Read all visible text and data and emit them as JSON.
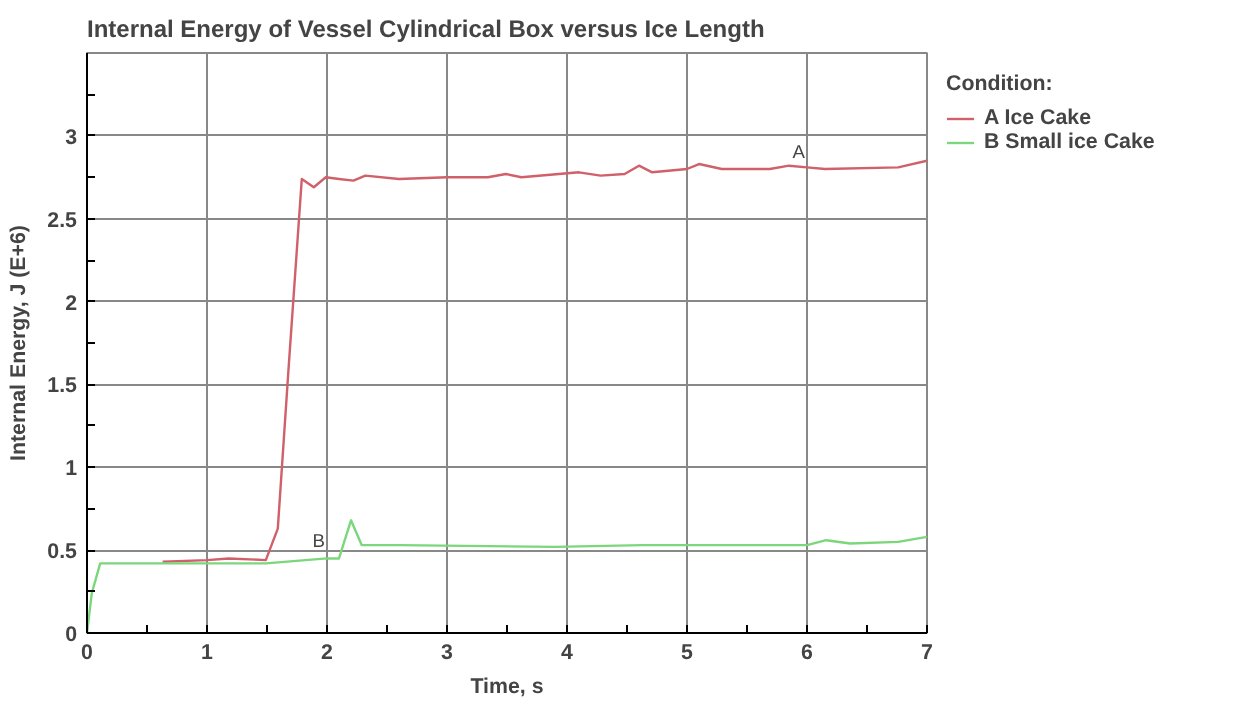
{
  "chart_data": {
    "type": "line",
    "title": "Internal Energy of Vessel Cylindrical Box versus Ice Length",
    "xlabel": "Time, s",
    "ylabel": "Internal Energy, J (E+6)",
    "legend_title": "Condition:",
    "series": [
      {
        "name": "A Ice Cake",
        "color": "#d0606a",
        "x": [
          0.63,
          1.0,
          1.18,
          1.49,
          1.59,
          1.68,
          1.79,
          1.89,
          1.99,
          2.1,
          2.22,
          2.32,
          2.6,
          3.0,
          3.34,
          3.49,
          3.62,
          4.1,
          4.28,
          4.48,
          4.6,
          4.71,
          5.0,
          5.1,
          5.29,
          5.69,
          5.85,
          6.0,
          6.15,
          6.76,
          7.0
        ],
        "values": [
          0.43,
          0.44,
          0.45,
          0.44,
          0.63,
          1.6,
          2.74,
          2.69,
          2.75,
          2.74,
          2.73,
          2.76,
          2.74,
          2.75,
          2.75,
          2.77,
          2.75,
          2.78,
          2.76,
          2.77,
          2.82,
          2.78,
          2.8,
          2.83,
          2.8,
          2.8,
          2.82,
          2.81,
          2.8,
          2.81,
          2.85
        ]
      },
      {
        "name": "B Small ice Cake",
        "color": "#7cd67c",
        "x": [
          0.0,
          0.04,
          0.11,
          0.57,
          1.49,
          2.0,
          2.1,
          2.2,
          2.29,
          2.6,
          3.9,
          4.63,
          6.0,
          6.16,
          6.36,
          6.76,
          7.0
        ],
        "values": [
          0.0,
          0.24,
          0.42,
          0.42,
          0.42,
          0.45,
          0.45,
          0.68,
          0.53,
          0.53,
          0.52,
          0.53,
          0.53,
          0.56,
          0.54,
          0.55,
          0.58
        ]
      }
    ],
    "annotations": [
      {
        "text": "A",
        "x": 5.93,
        "y": 2.82
      },
      {
        "text": "B",
        "x": 1.93,
        "y": 0.47
      }
    ],
    "xlim": [
      0,
      7
    ],
    "ylim": [
      0,
      3.5
    ],
    "xticks": [
      0,
      1,
      2,
      3,
      4,
      5,
      6,
      7
    ],
    "yticks": [
      0,
      0.5,
      1,
      1.5,
      2,
      2.5,
      3
    ],
    "grid": true,
    "legend": "top right",
    "marker": "none",
    "line_style": "solid"
  }
}
